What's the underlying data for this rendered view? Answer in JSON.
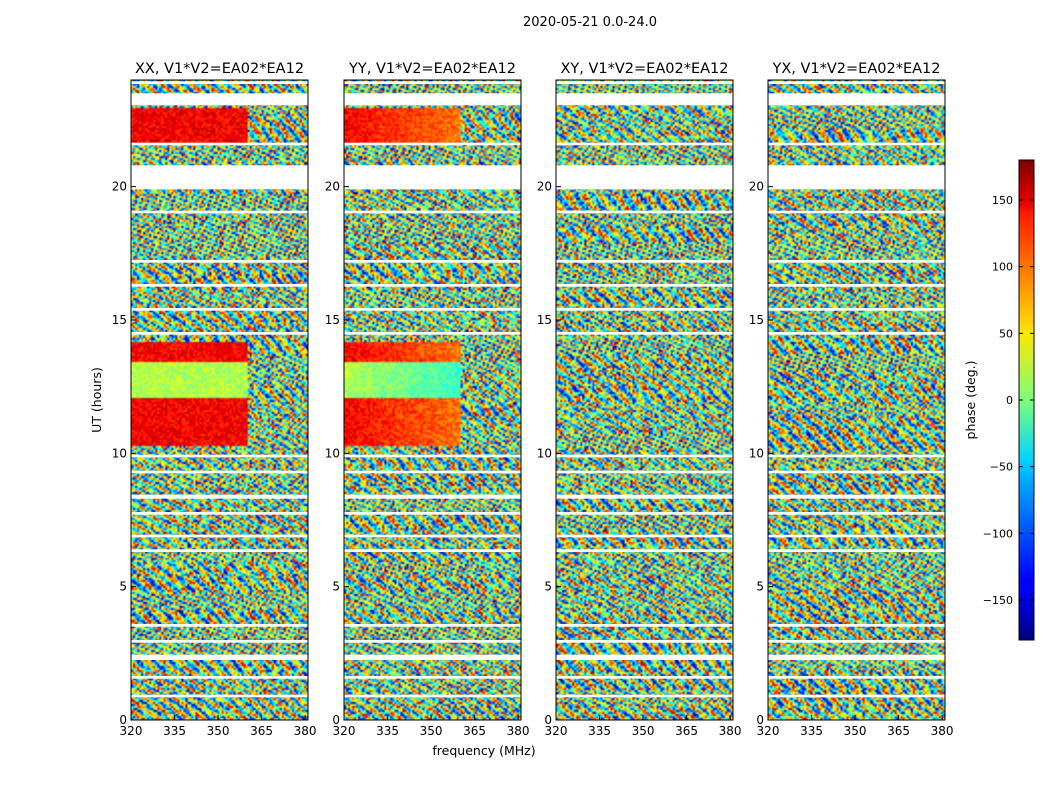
{
  "figure": {
    "suptitle": "2020-05-21 0.0-24.0",
    "xlabel": "frequency (MHz)",
    "ylabel": "UT (hours)",
    "colorbar_label": "phase (deg.)"
  },
  "chart_data": {
    "type": "heatmap",
    "title": "2020-05-21 0.0-24.0",
    "xlabel": "frequency (MHz)",
    "ylabel": "UT (hours)",
    "xlim": [
      320,
      381
    ],
    "ylim": [
      0,
      24
    ],
    "xticks": [
      320,
      335,
      350,
      365,
      380
    ],
    "yticks": [
      0,
      5,
      10,
      15,
      20
    ],
    "panels": [
      {
        "title": "XX, V1*V2=EA02*EA12",
        "pol": "XX",
        "pattern_seed": 11
      },
      {
        "title": "YY, V1*V2=EA02*EA12",
        "pol": "YY",
        "pattern_seed": 23
      },
      {
        "title": "XY, V1*V2=EA02*EA12",
        "pol": "XY",
        "pattern_seed": 37
      },
      {
        "title": "YX, V1*V2=EA02*EA12",
        "pol": "YX",
        "pattern_seed": 53
      }
    ],
    "gaps_ut_hours": [
      [
        0.85,
        0.95
      ],
      [
        1.55,
        1.65
      ],
      [
        2.25,
        2.45
      ],
      [
        2.9,
        3.0
      ],
      [
        3.5,
        3.6
      ],
      [
        6.3,
        6.4
      ],
      [
        6.85,
        6.95
      ],
      [
        7.7,
        7.8
      ],
      [
        8.3,
        8.45
      ],
      [
        9.25,
        9.35
      ],
      [
        9.85,
        9.95
      ],
      [
        14.45,
        14.55
      ],
      [
        15.35,
        15.45
      ],
      [
        16.25,
        16.35
      ],
      [
        17.15,
        17.25
      ],
      [
        19.0,
        19.1
      ],
      [
        19.9,
        20.8
      ],
      [
        21.55,
        21.65
      ],
      [
        23.05,
        23.5
      ],
      [
        23.85,
        23.95
      ]
    ],
    "colorbar": {
      "label": "phase (deg.)",
      "min": -180,
      "max": 180,
      "ticks": [
        -150,
        -100,
        -50,
        0,
        50,
        100,
        150
      ],
      "colormap": "jet"
    }
  }
}
